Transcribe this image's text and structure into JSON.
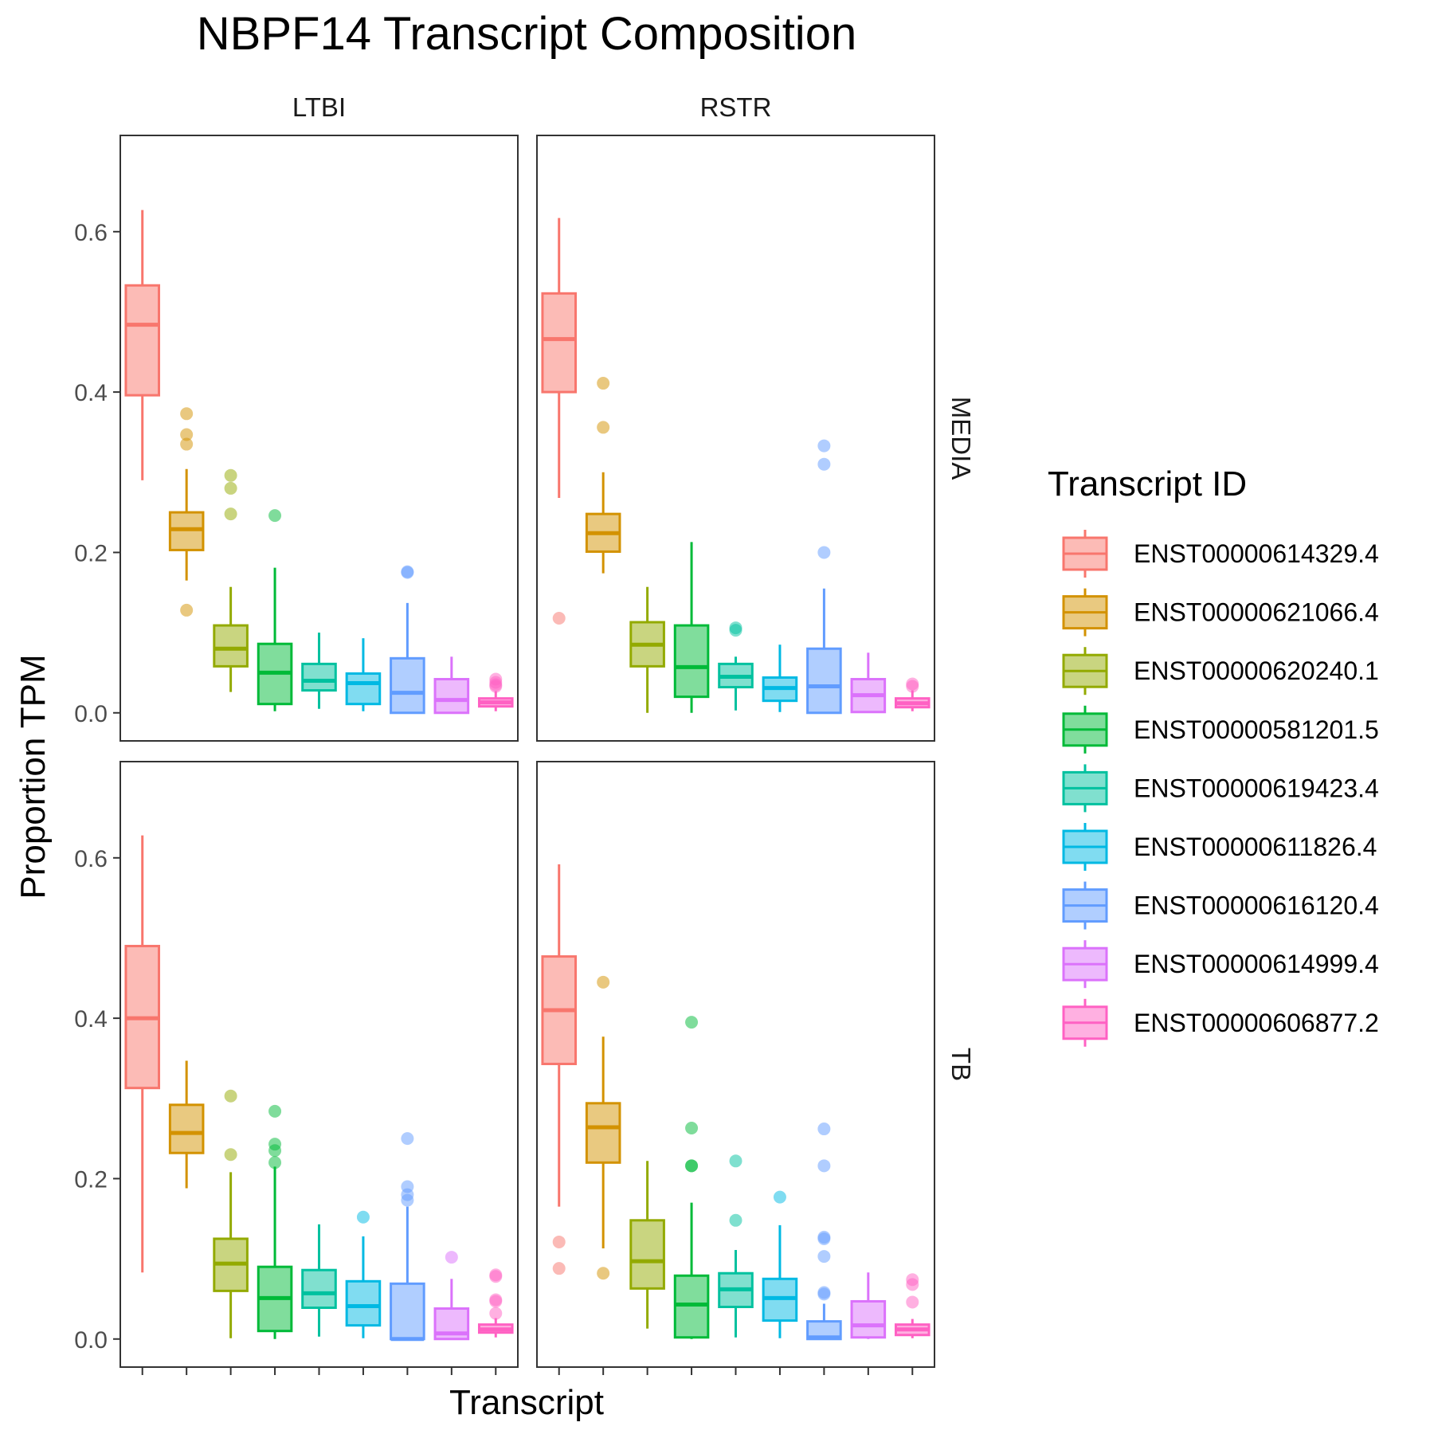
{
  "chart_data": {
    "type": "boxplot",
    "title": "NBPF14 Transcript Composition",
    "xlabel": "Transcript",
    "ylabel": "Proportion TPM",
    "ylim": [
      -0.035,
      0.72
    ],
    "y_ticks": [
      0.0,
      0.2,
      0.4,
      0.6
    ],
    "y_tick_labels": [
      "0.0",
      "0.2",
      "0.4",
      "0.6"
    ],
    "grid": false,
    "facet_columns": [
      "LTBI",
      "RSTR"
    ],
    "facet_rows": [
      "MEDIA",
      "TB"
    ],
    "legend": {
      "title": "Transcript ID",
      "position": "right",
      "entries": [
        {
          "label": "ENST00000614329.4",
          "color": "#F8766D"
        },
        {
          "label": "ENST00000621066.4",
          "color": "#D39200"
        },
        {
          "label": "ENST00000620240.1",
          "color": "#93AA00"
        },
        {
          "label": "ENST00000581201.5",
          "color": "#00BA38"
        },
        {
          "label": "ENST00000619423.4",
          "color": "#00C19F"
        },
        {
          "label": "ENST00000611826.4",
          "color": "#00B9E3"
        },
        {
          "label": "ENST00000616120.4",
          "color": "#619CFF"
        },
        {
          "label": "ENST00000614999.4",
          "color": "#DB72FB"
        },
        {
          "label": "ENST00000606877.2",
          "color": "#FF61C3"
        }
      ]
    },
    "panels": [
      {
        "col": "LTBI",
        "row": "MEDIA",
        "boxes": [
          {
            "q1": 0.396,
            "median": 0.484,
            "q3": 0.533,
            "whisker_low": 0.29,
            "whisker_high": 0.627,
            "outliers": []
          },
          {
            "q1": 0.203,
            "median": 0.229,
            "q3": 0.25,
            "whisker_low": 0.165,
            "whisker_high": 0.304,
            "outliers": [
              0.373,
              0.347,
              0.335,
              0.128
            ]
          },
          {
            "q1": 0.058,
            "median": 0.08,
            "q3": 0.109,
            "whisker_low": 0.026,
            "whisker_high": 0.157,
            "outliers": [
              0.296,
              0.28,
              0.248
            ]
          },
          {
            "q1": 0.011,
            "median": 0.05,
            "q3": 0.086,
            "whisker_low": 0.002,
            "whisker_high": 0.181,
            "outliers": [
              0.246
            ]
          },
          {
            "q1": 0.028,
            "median": 0.04,
            "q3": 0.061,
            "whisker_low": 0.005,
            "whisker_high": 0.1,
            "outliers": []
          },
          {
            "q1": 0.011,
            "median": 0.037,
            "q3": 0.049,
            "whisker_low": 0.002,
            "whisker_high": 0.093,
            "outliers": []
          },
          {
            "q1": 0.0,
            "median": 0.025,
            "q3": 0.068,
            "whisker_low": 0.0,
            "whisker_high": 0.137,
            "outliers": [
              0.176,
              0.175
            ]
          },
          {
            "q1": 0.0,
            "median": 0.016,
            "q3": 0.042,
            "whisker_low": 0.0,
            "whisker_high": 0.07,
            "outliers": []
          },
          {
            "q1": 0.008,
            "median": 0.013,
            "q3": 0.018,
            "whisker_low": 0.002,
            "whisker_high": 0.027,
            "outliers": [
              0.042,
              0.038,
              0.035,
              0.033
            ]
          }
        ]
      },
      {
        "col": "RSTR",
        "row": "MEDIA",
        "boxes": [
          {
            "q1": 0.4,
            "median": 0.466,
            "q3": 0.523,
            "whisker_low": 0.268,
            "whisker_high": 0.617,
            "outliers": [
              0.118
            ]
          },
          {
            "q1": 0.201,
            "median": 0.224,
            "q3": 0.248,
            "whisker_low": 0.174,
            "whisker_high": 0.3,
            "outliers": [
              0.411,
              0.356
            ]
          },
          {
            "q1": 0.058,
            "median": 0.085,
            "q3": 0.113,
            "whisker_low": 0.0,
            "whisker_high": 0.157,
            "outliers": []
          },
          {
            "q1": 0.02,
            "median": 0.057,
            "q3": 0.109,
            "whisker_low": 0.0,
            "whisker_high": 0.213,
            "outliers": []
          },
          {
            "q1": 0.032,
            "median": 0.045,
            "q3": 0.061,
            "whisker_low": 0.003,
            "whisker_high": 0.07,
            "outliers": [
              0.106,
              0.103
            ]
          },
          {
            "q1": 0.015,
            "median": 0.031,
            "q3": 0.044,
            "whisker_low": 0.001,
            "whisker_high": 0.085,
            "outliers": []
          },
          {
            "q1": 0.0,
            "median": 0.033,
            "q3": 0.08,
            "whisker_low": 0.0,
            "whisker_high": 0.155,
            "outliers": [
              0.333,
              0.31,
              0.2
            ]
          },
          {
            "q1": 0.001,
            "median": 0.022,
            "q3": 0.042,
            "whisker_low": 0.0,
            "whisker_high": 0.075,
            "outliers": []
          },
          {
            "q1": 0.007,
            "median": 0.012,
            "q3": 0.018,
            "whisker_low": 0.002,
            "whisker_high": 0.028,
            "outliers": [
              0.036,
              0.033
            ]
          }
        ]
      },
      {
        "col": "LTBI",
        "row": "TB",
        "boxes": [
          {
            "q1": 0.313,
            "median": 0.4,
            "q3": 0.49,
            "whisker_low": 0.083,
            "whisker_high": 0.628,
            "outliers": []
          },
          {
            "q1": 0.232,
            "median": 0.257,
            "q3": 0.292,
            "whisker_low": 0.188,
            "whisker_high": 0.347,
            "outliers": []
          },
          {
            "q1": 0.06,
            "median": 0.094,
            "q3": 0.125,
            "whisker_low": 0.001,
            "whisker_high": 0.208,
            "outliers": [
              0.303,
              0.23
            ]
          },
          {
            "q1": 0.01,
            "median": 0.051,
            "q3": 0.09,
            "whisker_low": 0.0,
            "whisker_high": 0.215,
            "outliers": [
              0.284,
              0.243,
              0.235,
              0.22
            ]
          },
          {
            "q1": 0.039,
            "median": 0.057,
            "q3": 0.086,
            "whisker_low": 0.003,
            "whisker_high": 0.143,
            "outliers": []
          },
          {
            "q1": 0.017,
            "median": 0.041,
            "q3": 0.072,
            "whisker_low": 0.001,
            "whisker_high": 0.128,
            "outliers": [
              0.152
            ]
          },
          {
            "q1": 0.0,
            "median": 0.0,
            "q3": 0.069,
            "whisker_low": 0.0,
            "whisker_high": 0.165,
            "outliers": [
              0.25,
              0.19,
              0.18,
              0.173
            ]
          },
          {
            "q1": 0.0,
            "median": 0.007,
            "q3": 0.038,
            "whisker_low": 0.0,
            "whisker_high": 0.075,
            "outliers": [
              0.102
            ]
          },
          {
            "q1": 0.008,
            "median": 0.012,
            "q3": 0.018,
            "whisker_low": 0.002,
            "whisker_high": 0.026,
            "outliers": [
              0.08,
              0.078,
              0.049,
              0.047,
              0.032
            ]
          }
        ]
      },
      {
        "col": "RSTR",
        "row": "TB",
        "boxes": [
          {
            "q1": 0.343,
            "median": 0.41,
            "q3": 0.477,
            "whisker_low": 0.165,
            "whisker_high": 0.592,
            "outliers": [
              0.121,
              0.088
            ]
          },
          {
            "q1": 0.22,
            "median": 0.264,
            "q3": 0.294,
            "whisker_low": 0.113,
            "whisker_high": 0.377,
            "outliers": [
              0.445,
              0.082
            ]
          },
          {
            "q1": 0.063,
            "median": 0.097,
            "q3": 0.148,
            "whisker_low": 0.013,
            "whisker_high": 0.222,
            "outliers": []
          },
          {
            "q1": 0.002,
            "median": 0.043,
            "q3": 0.079,
            "whisker_low": 0.0,
            "whisker_high": 0.17,
            "outliers": [
              0.395,
              0.263,
              0.216,
              0.216
            ]
          },
          {
            "q1": 0.04,
            "median": 0.062,
            "q3": 0.082,
            "whisker_low": 0.002,
            "whisker_high": 0.111,
            "outliers": [
              0.222,
              0.148
            ]
          },
          {
            "q1": 0.023,
            "median": 0.051,
            "q3": 0.075,
            "whisker_low": 0.001,
            "whisker_high": 0.142,
            "outliers": [
              0.177
            ]
          },
          {
            "q1": 0.0,
            "median": 0.002,
            "q3": 0.022,
            "whisker_low": 0.0,
            "whisker_high": 0.044,
            "outliers": [
              0.262,
              0.216,
              0.127,
              0.125,
              0.103,
              0.058,
              0.056
            ]
          },
          {
            "q1": 0.002,
            "median": 0.017,
            "q3": 0.047,
            "whisker_low": 0.0,
            "whisker_high": 0.083,
            "outliers": []
          },
          {
            "q1": 0.005,
            "median": 0.012,
            "q3": 0.018,
            "whisker_low": 0.001,
            "whisker_high": 0.025,
            "outliers": [
              0.074,
              0.068,
              0.046
            ]
          }
        ]
      }
    ]
  }
}
